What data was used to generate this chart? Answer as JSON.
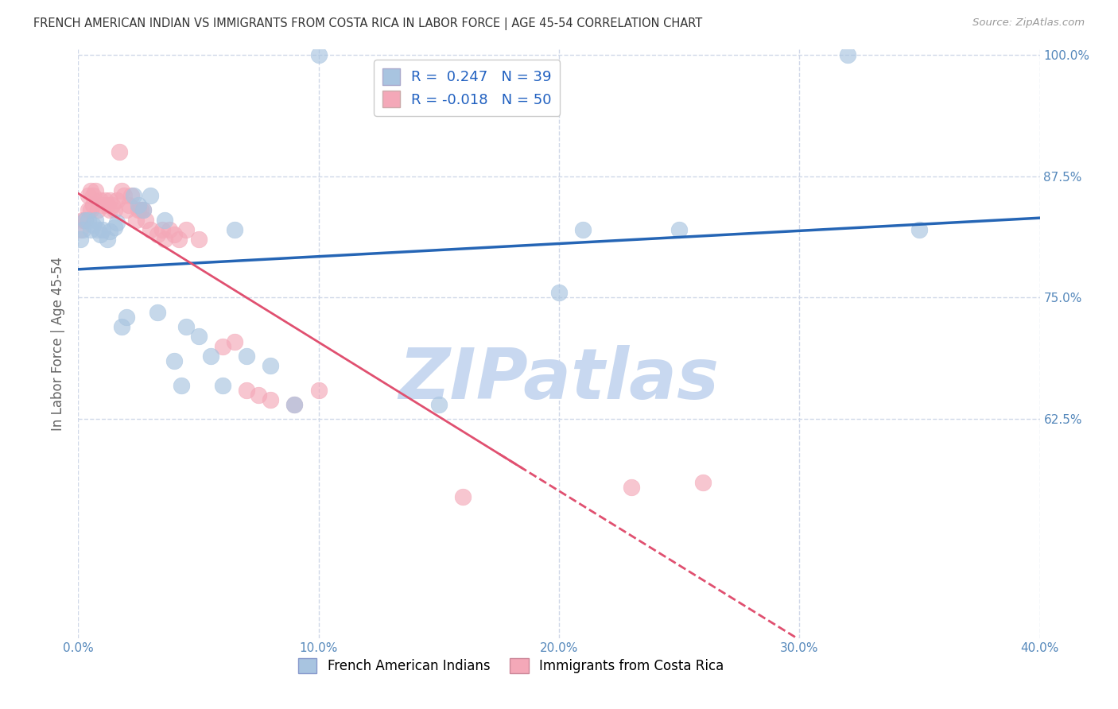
{
  "title": "FRENCH AMERICAN INDIAN VS IMMIGRANTS FROM COSTA RICA IN LABOR FORCE | AGE 45-54 CORRELATION CHART",
  "source": "Source: ZipAtlas.com",
  "ylabel": "In Labor Force | Age 45-54",
  "xlim": [
    0.0,
    0.4
  ],
  "ylim": [
    0.4,
    1.005
  ],
  "xticks": [
    0.0,
    0.1,
    0.2,
    0.3,
    0.4
  ],
  "xticklabels": [
    "0.0%",
    "10.0%",
    "20.0%",
    "30.0%",
    "40.0%"
  ],
  "yticks": [
    0.625,
    0.75,
    0.875,
    1.0
  ],
  "yticklabels": [
    "62.5%",
    "75.0%",
    "87.5%",
    "100.0%"
  ],
  "blue_R": 0.247,
  "blue_N": 39,
  "pink_R": -0.018,
  "pink_N": 50,
  "blue_color": "#a8c4e0",
  "pink_color": "#f4a8b8",
  "blue_line_color": "#2565b5",
  "pink_line_color": "#e05070",
  "background_color": "#ffffff",
  "grid_color": "#d0d8e8",
  "axis_color": "#5588bb",
  "watermark_color": "#c8d8f0",
  "blue_x": [
    0.001,
    0.002,
    0.003,
    0.004,
    0.005,
    0.006,
    0.007,
    0.008,
    0.009,
    0.01,
    0.012,
    0.013,
    0.015,
    0.016,
    0.018,
    0.02,
    0.023,
    0.025,
    0.027,
    0.03,
    0.033,
    0.036,
    0.04,
    0.043,
    0.045,
    0.05,
    0.055,
    0.06,
    0.065,
    0.07,
    0.08,
    0.09,
    0.1,
    0.15,
    0.2,
    0.21,
    0.25,
    0.32,
    0.35
  ],
  "blue_y": [
    0.81,
    0.82,
    0.83,
    0.83,
    0.82,
    0.825,
    0.83,
    0.82,
    0.815,
    0.82,
    0.81,
    0.818,
    0.822,
    0.827,
    0.72,
    0.73,
    0.855,
    0.845,
    0.84,
    0.855,
    0.735,
    0.83,
    0.685,
    0.66,
    0.72,
    0.71,
    0.69,
    0.66,
    0.82,
    0.69,
    0.68,
    0.64,
    1.0,
    0.64,
    0.755,
    0.82,
    0.82,
    1.0,
    0.82
  ],
  "pink_x": [
    0.001,
    0.002,
    0.003,
    0.004,
    0.004,
    0.005,
    0.005,
    0.006,
    0.006,
    0.007,
    0.008,
    0.009,
    0.01,
    0.011,
    0.012,
    0.013,
    0.013,
    0.014,
    0.015,
    0.016,
    0.017,
    0.018,
    0.019,
    0.02,
    0.021,
    0.022,
    0.024,
    0.025,
    0.026,
    0.027,
    0.028,
    0.03,
    0.033,
    0.035,
    0.036,
    0.038,
    0.04,
    0.042,
    0.045,
    0.05,
    0.06,
    0.065,
    0.07,
    0.075,
    0.08,
    0.09,
    0.1,
    0.16,
    0.23,
    0.26
  ],
  "pink_y": [
    0.82,
    0.83,
    0.83,
    0.84,
    0.855,
    0.84,
    0.86,
    0.845,
    0.855,
    0.86,
    0.84,
    0.85,
    0.845,
    0.85,
    0.845,
    0.85,
    0.84,
    0.845,
    0.84,
    0.85,
    0.9,
    0.86,
    0.855,
    0.84,
    0.845,
    0.855,
    0.83,
    0.84,
    0.84,
    0.84,
    0.83,
    0.82,
    0.815,
    0.82,
    0.81,
    0.82,
    0.815,
    0.81,
    0.82,
    0.81,
    0.7,
    0.705,
    0.655,
    0.65,
    0.645,
    0.64,
    0.655,
    0.545,
    0.555,
    0.56
  ]
}
